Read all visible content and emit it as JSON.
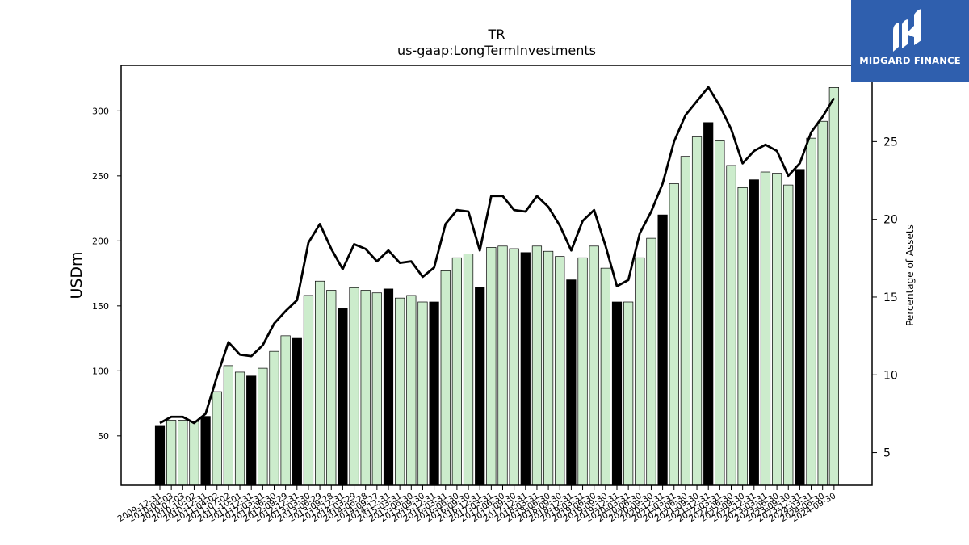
{
  "chart_data": {
    "type": "bar",
    "title": "TR",
    "subtitle": "us-gaap:LongTermInvestments",
    "ylabel": "USDm",
    "y2label": "Percentage of Assets",
    "ylim": [
      12,
      335
    ],
    "y2lim": [
      2.9,
      29.9
    ],
    "yticks": [
      50,
      100,
      150,
      200,
      250,
      300
    ],
    "y2ticks": [
      5,
      10,
      15,
      20,
      25
    ],
    "grid": false,
    "categories": [
      "2009-12-31",
      "2010-03-31",
      "2010-06-30",
      "2010-09-30",
      "2010-12-31",
      "2011-03-31",
      "2011-06-30",
      "2011-09-30",
      "2011-12-31",
      "2012-03-31",
      "2012-06-30",
      "2012-09-30",
      "2012-12-31",
      "2013-03-31",
      "2013-06-30",
      "2013-09-30",
      "2013-12-31",
      "2014-03-31",
      "2014-06-30",
      "2014-09-30",
      "2014-12-31",
      "2015-03-31",
      "2015-06-30",
      "2015-09-30",
      "2015-12-31",
      "2016-03-31",
      "2016-06-30",
      "2016-09-30",
      "2016-12-31",
      "2017-03-31",
      "2017-06-30",
      "2017-09-30",
      "2017-12-31",
      "2018-03-31",
      "2018-06-30",
      "2018-09-30",
      "2018-12-31",
      "2019-03-31",
      "2019-06-30",
      "2019-09-30",
      "2019-12-31",
      "2020-03-31",
      "2020-06-30",
      "2020-09-30",
      "2020-12-31",
      "2021-03-31",
      "2021-06-30",
      "2021-09-30",
      "2021-12-31",
      "2022-03-31",
      "2022-06-30",
      "2022-09-30",
      "2022-12-31",
      "2023-03-31",
      "2023-06-30",
      "2023-09-30",
      "2023-12-31",
      "2024-03-31",
      "2024-06-30",
      "2024-09-30"
    ],
    "tick_labels": [
      "2009-12-31",
      "2010-04-03",
      "2010-07-03",
      "2010-10-02",
      "2010-12-31",
      "2011-04-02",
      "2011-07-02",
      "2011-10-01",
      "2011-12-31",
      "2012-03-31",
      "2012-06-30",
      "2012-09-29",
      "2012-12-31",
      "2013-03-30",
      "2013-06-29",
      "2013-09-28",
      "2013-12-31",
      "2014-03-29",
      "2014-06-28",
      "2014-09-27",
      "2014-12-31",
      "2015-03-31",
      "2015-06-30",
      "2015-09-30",
      "2015-12-31",
      "2016-03-31",
      "2016-06-30",
      "2016-09-30",
      "2016-12-31",
      "2017-03-31",
      "2017-06-30",
      "2017-09-30",
      "2017-12-31",
      "2018-03-31",
      "2018-06-30",
      "2018-09-30",
      "2018-12-31",
      "2019-03-31",
      "2019-06-30",
      "2019-09-30",
      "2019-12-31",
      "2020-03-31",
      "2020-06-30",
      "2020-09-30",
      "2020-12-31",
      "2021-03-31",
      "2021-06-30",
      "2021-09-30",
      "2021-12-31",
      "2022-03-31",
      "2022-06-30",
      "2022-09-30",
      "2022-12-31",
      "2023-03-31",
      "2023-06-30",
      "2023-09-30",
      "2023-12-31",
      "2024-03-31",
      "2024-06-30",
      "2024-09-30"
    ],
    "values": [
      58,
      62,
      62,
      61,
      65,
      84,
      104,
      99,
      96,
      102,
      115,
      127,
      125,
      158,
      169,
      162,
      148,
      164,
      162,
      160,
      163,
      156,
      158,
      153,
      153,
      177,
      187,
      190,
      164,
      195,
      196,
      194,
      191,
      196,
      192,
      188,
      170,
      187,
      196,
      179,
      153,
      153,
      187,
      202,
      220,
      244,
      265,
      280,
      291,
      277,
      258,
      241,
      247,
      253,
      252,
      243,
      255,
      279,
      292,
      318
    ],
    "highlight": [
      true,
      false,
      false,
      false,
      true,
      false,
      false,
      false,
      true,
      false,
      false,
      false,
      true,
      false,
      false,
      false,
      true,
      false,
      false,
      false,
      true,
      false,
      false,
      false,
      true,
      false,
      false,
      false,
      true,
      false,
      false,
      false,
      true,
      false,
      false,
      false,
      true,
      false,
      false,
      false,
      true,
      false,
      false,
      false,
      true,
      false,
      false,
      false,
      true,
      false,
      false,
      false,
      true,
      false,
      false,
      false,
      true,
      false,
      false,
      false
    ],
    "series": [
      {
        "axis": "right",
        "type": "line",
        "values": [
          6.9,
          7.3,
          7.3,
          6.9,
          7.5,
          9.9,
          12.1,
          11.3,
          11.2,
          11.9,
          13.3,
          14.1,
          14.8,
          18.5,
          19.7,
          18.1,
          16.8,
          18.4,
          18.1,
          17.3,
          18.0,
          17.2,
          17.3,
          16.3,
          16.9,
          19.7,
          20.6,
          20.5,
          18.0,
          21.5,
          21.5,
          20.6,
          20.5,
          21.5,
          20.8,
          19.6,
          18.0,
          19.9,
          20.6,
          18.3,
          15.7,
          16.1,
          19.1,
          20.5,
          22.3,
          25.0,
          26.7,
          27.6,
          28.5,
          27.3,
          25.8,
          23.6,
          24.4,
          24.8,
          24.4,
          22.8,
          23.6,
          25.6,
          26.6,
          27.8
        ]
      }
    ],
    "colors": {
      "bar": "#cceccc",
      "bar_highlight": "#000000",
      "line": "#000000",
      "axis": "#000000"
    }
  },
  "logo": {
    "text": "MIDGARD FINANCE",
    "background": "#2f5fae"
  }
}
